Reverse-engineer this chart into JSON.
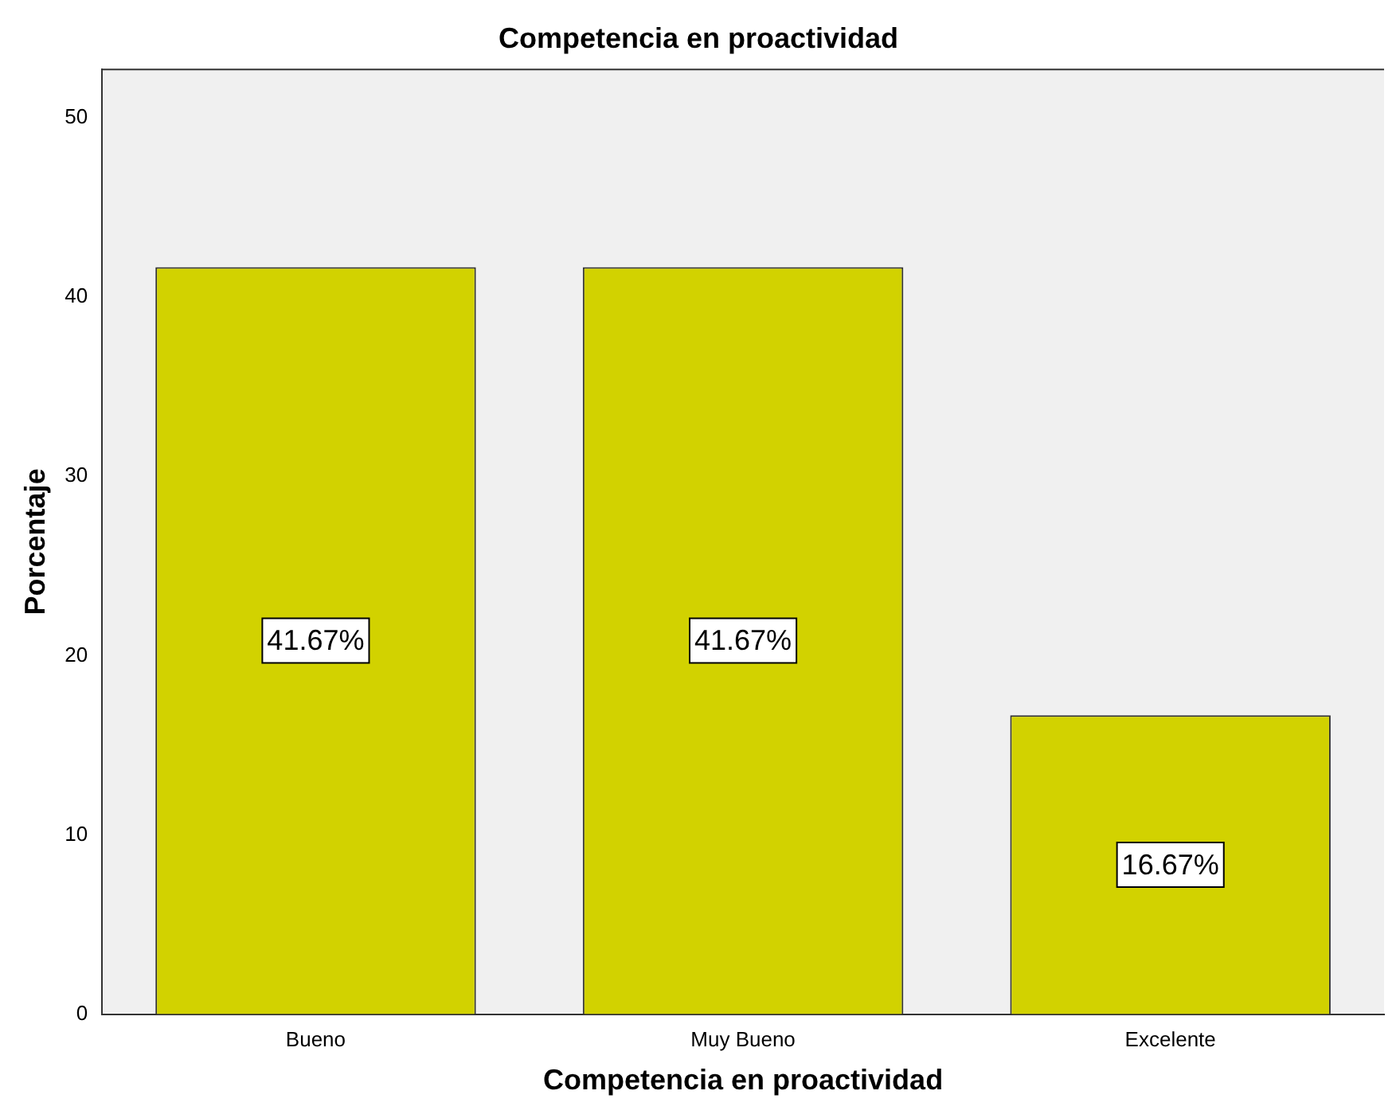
{
  "chart_data": {
    "type": "bar",
    "title": "Competencia en proactividad",
    "xlabel": "Competencia en proactividad",
    "ylabel": "Porcentaje",
    "categories": [
      "Bueno",
      "Muy Bueno",
      "Excelente"
    ],
    "values": [
      41.67,
      41.67,
      16.67
    ],
    "value_labels": [
      "41.67%",
      "41.67%",
      "16.67%"
    ],
    "color": "#d2d200",
    "ylim": [
      0,
      52.7
    ],
    "yticks": [
      0,
      10,
      20,
      30,
      40,
      50
    ],
    "grid": false,
    "legend": false
  }
}
